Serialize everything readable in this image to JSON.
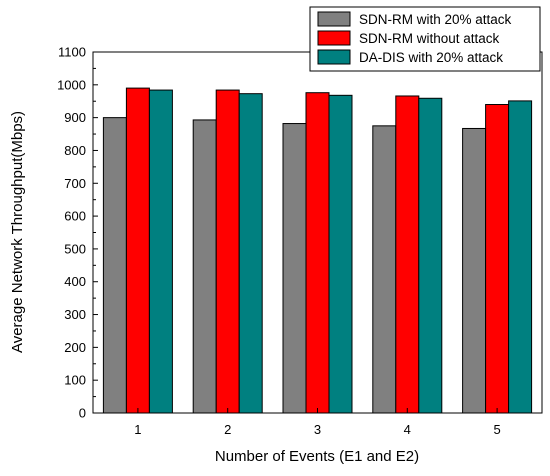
{
  "chart_data": {
    "type": "bar",
    "title": "",
    "xlabel": "Number of Events (E1 and E2)",
    "ylabel": "Average Network Throughput(Mbps)",
    "categories": [
      "1",
      "2",
      "3",
      "4",
      "5"
    ],
    "ylim": [
      0,
      1100
    ],
    "yticks": [
      0,
      100,
      200,
      300,
      400,
      500,
      600,
      700,
      800,
      900,
      1000,
      1100
    ],
    "grid": false,
    "legend_position": "top-right",
    "series": [
      {
        "name": "SDN-RM with 20% attack",
        "color": "#808080",
        "values": [
          900,
          893,
          882,
          875,
          867
        ]
      },
      {
        "name": "SDN-RM without attack",
        "color": "#ff0000",
        "values": [
          990,
          984,
          976,
          966,
          940
        ]
      },
      {
        "name": "DA-DIS with 20% attack",
        "color": "#008080",
        "values": [
          984,
          973,
          968,
          959,
          951
        ]
      }
    ]
  }
}
